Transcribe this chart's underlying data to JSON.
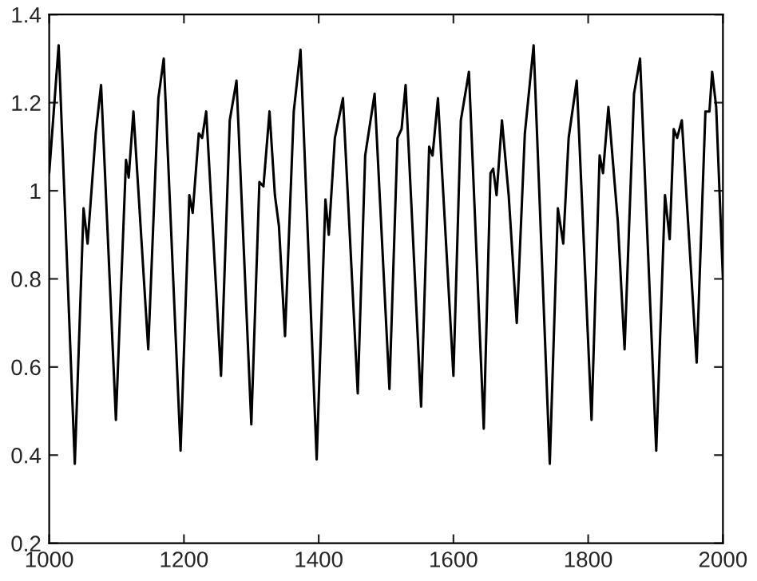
{
  "chart_data": {
    "type": "line",
    "x": [
      1000,
      1014,
      1038,
      1051,
      1057,
      1069,
      1077,
      1099,
      1114,
      1118,
      1125,
      1134,
      1147,
      1162,
      1170,
      1195,
      1208,
      1213,
      1222,
      1227,
      1233,
      1255,
      1268,
      1278,
      1300,
      1312,
      1318,
      1327,
      1335,
      1341,
      1350,
      1363,
      1373,
      1397,
      1410,
      1415,
      1424,
      1436,
      1458,
      1469,
      1473,
      1483,
      1505,
      1517,
      1523,
      1529,
      1552,
      1564,
      1569,
      1577,
      1600,
      1611,
      1623,
      1645,
      1655,
      1659,
      1664,
      1672,
      1682,
      1694,
      1706,
      1719,
      1743,
      1755,
      1763,
      1771,
      1783,
      1805,
      1817,
      1822,
      1830,
      1844,
      1854,
      1868,
      1877,
      1901,
      1914,
      1921,
      1927,
      1932,
      1939,
      1961,
      1974,
      1980,
      1984,
      1990,
      2000
    ],
    "series": [
      {
        "color": "#000000",
        "values": [
          1.04,
          1.33,
          0.38,
          0.96,
          0.88,
          1.13,
          1.24,
          0.48,
          1.07,
          1.03,
          1.18,
          0.96,
          0.64,
          1.21,
          1.3,
          0.41,
          0.99,
          0.95,
          1.13,
          1.12,
          1.18,
          0.58,
          1.16,
          1.25,
          0.47,
          1.02,
          1.01,
          1.18,
          0.99,
          0.92,
          0.67,
          1.18,
          1.32,
          0.39,
          0.98,
          0.9,
          1.12,
          1.21,
          0.54,
          1.08,
          1.12,
          1.22,
          0.55,
          1.12,
          1.14,
          1.24,
          0.51,
          1.1,
          1.08,
          1.21,
          0.58,
          1.16,
          1.27,
          0.46,
          1.04,
          1.05,
          0.99,
          1.16,
          0.99,
          0.7,
          1.13,
          1.33,
          0.38,
          0.96,
          0.88,
          1.12,
          1.25,
          0.48,
          1.08,
          1.04,
          1.19,
          0.93,
          0.64,
          1.22,
          1.3,
          0.41,
          0.99,
          0.89,
          1.14,
          1.12,
          1.16,
          0.61,
          1.18,
          1.18,
          1.27,
          1.19,
          0.8
        ]
      }
    ],
    "xlim": [
      1000,
      2000
    ],
    "xticks": [
      1000,
      1200,
      1400,
      1600,
      1800,
      2000
    ],
    "ylim": [
      0.2,
      1.4
    ],
    "yticks": [
      0.2,
      0.4,
      0.6,
      0.8,
      1,
      1.2,
      1.4
    ],
    "grid": false,
    "legend": false,
    "line_style": "solid",
    "marker": "none"
  }
}
